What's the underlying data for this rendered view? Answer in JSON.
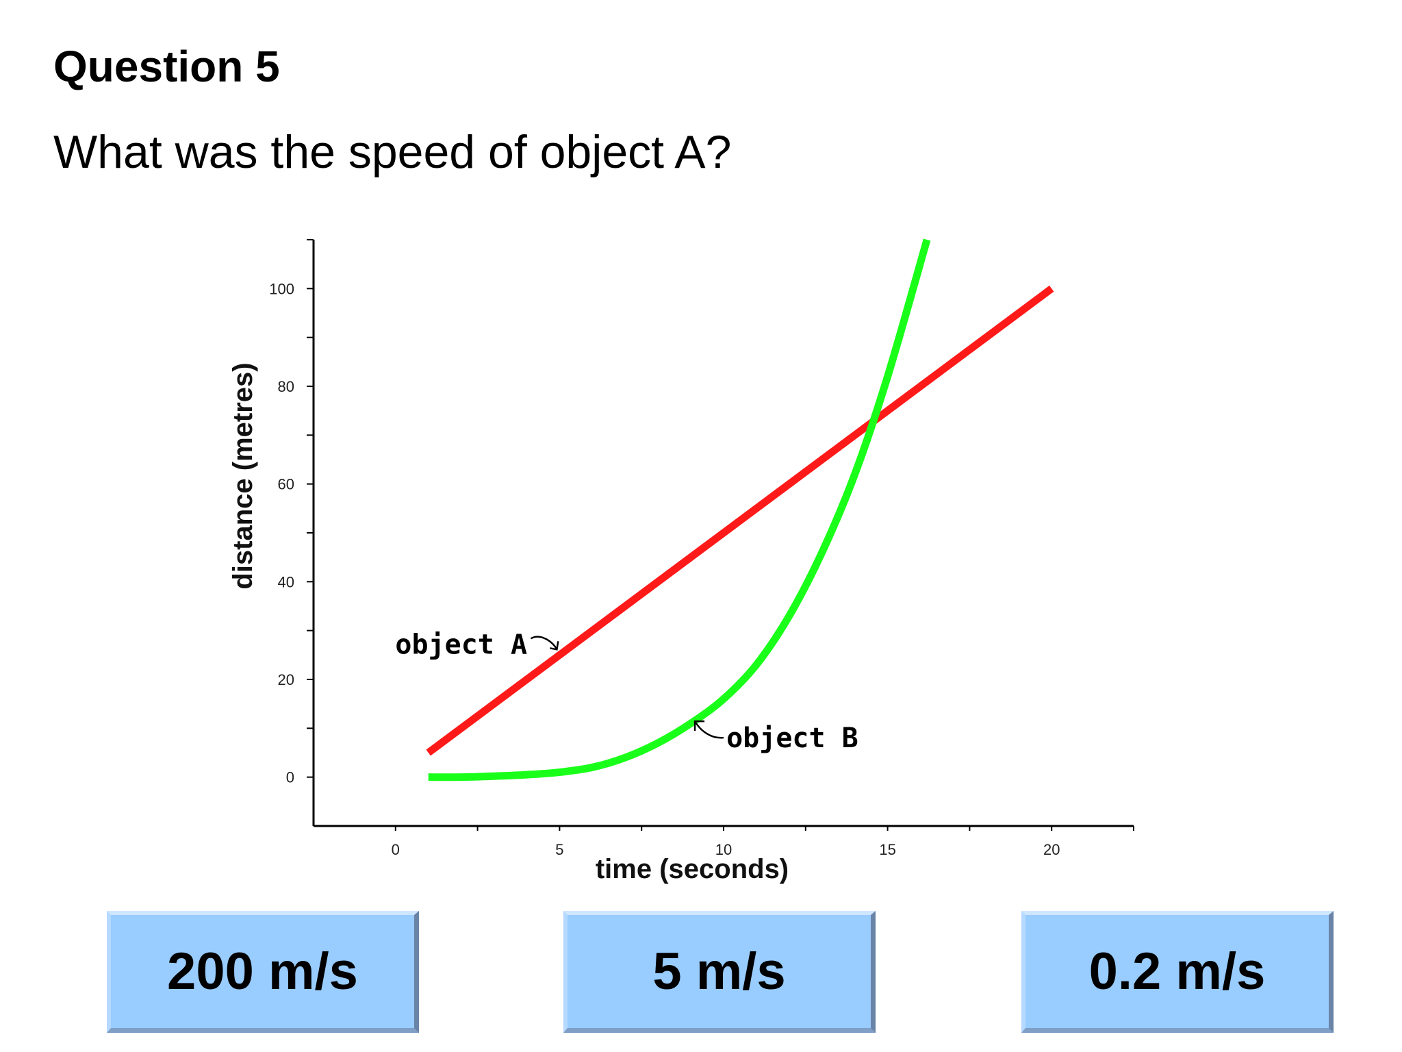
{
  "question": {
    "title": "Question 5",
    "text": "What was the speed of object A?"
  },
  "answers": [
    {
      "label": "200 m/s"
    },
    {
      "label": "5 m/s"
    },
    {
      "label": "0.2 m/s"
    }
  ],
  "chart_data": {
    "type": "line",
    "xlabel": "time (seconds)",
    "ylabel": "distance (metres)",
    "xlim": [
      -2.5,
      22.5
    ],
    "ylim": [
      -10,
      110
    ],
    "x_ticks": [
      0,
      5,
      10,
      15,
      20
    ],
    "y_ticks": [
      0,
      20,
      40,
      60,
      80,
      100
    ],
    "grid": false,
    "series": [
      {
        "name": "object A",
        "color": "#ff1a1a",
        "x": [
          1,
          20
        ],
        "y": [
          5,
          100
        ]
      },
      {
        "name": "object B",
        "color": "#1aff1a",
        "x": [
          1,
          2,
          3,
          4,
          5,
          6,
          7,
          8,
          9,
          10,
          11,
          12,
          13,
          14,
          15,
          16.2
        ],
        "y": [
          0,
          0,
          0.2,
          0.5,
          1,
          2,
          4,
          7,
          11,
          16,
          23,
          33,
          46,
          62,
          82,
          110
        ]
      }
    ],
    "annotations": [
      {
        "text": "object A",
        "series": "object A",
        "x": 5,
        "y": 25
      },
      {
        "text": "object B",
        "series": "object B",
        "x": 9,
        "y": 12
      }
    ]
  }
}
